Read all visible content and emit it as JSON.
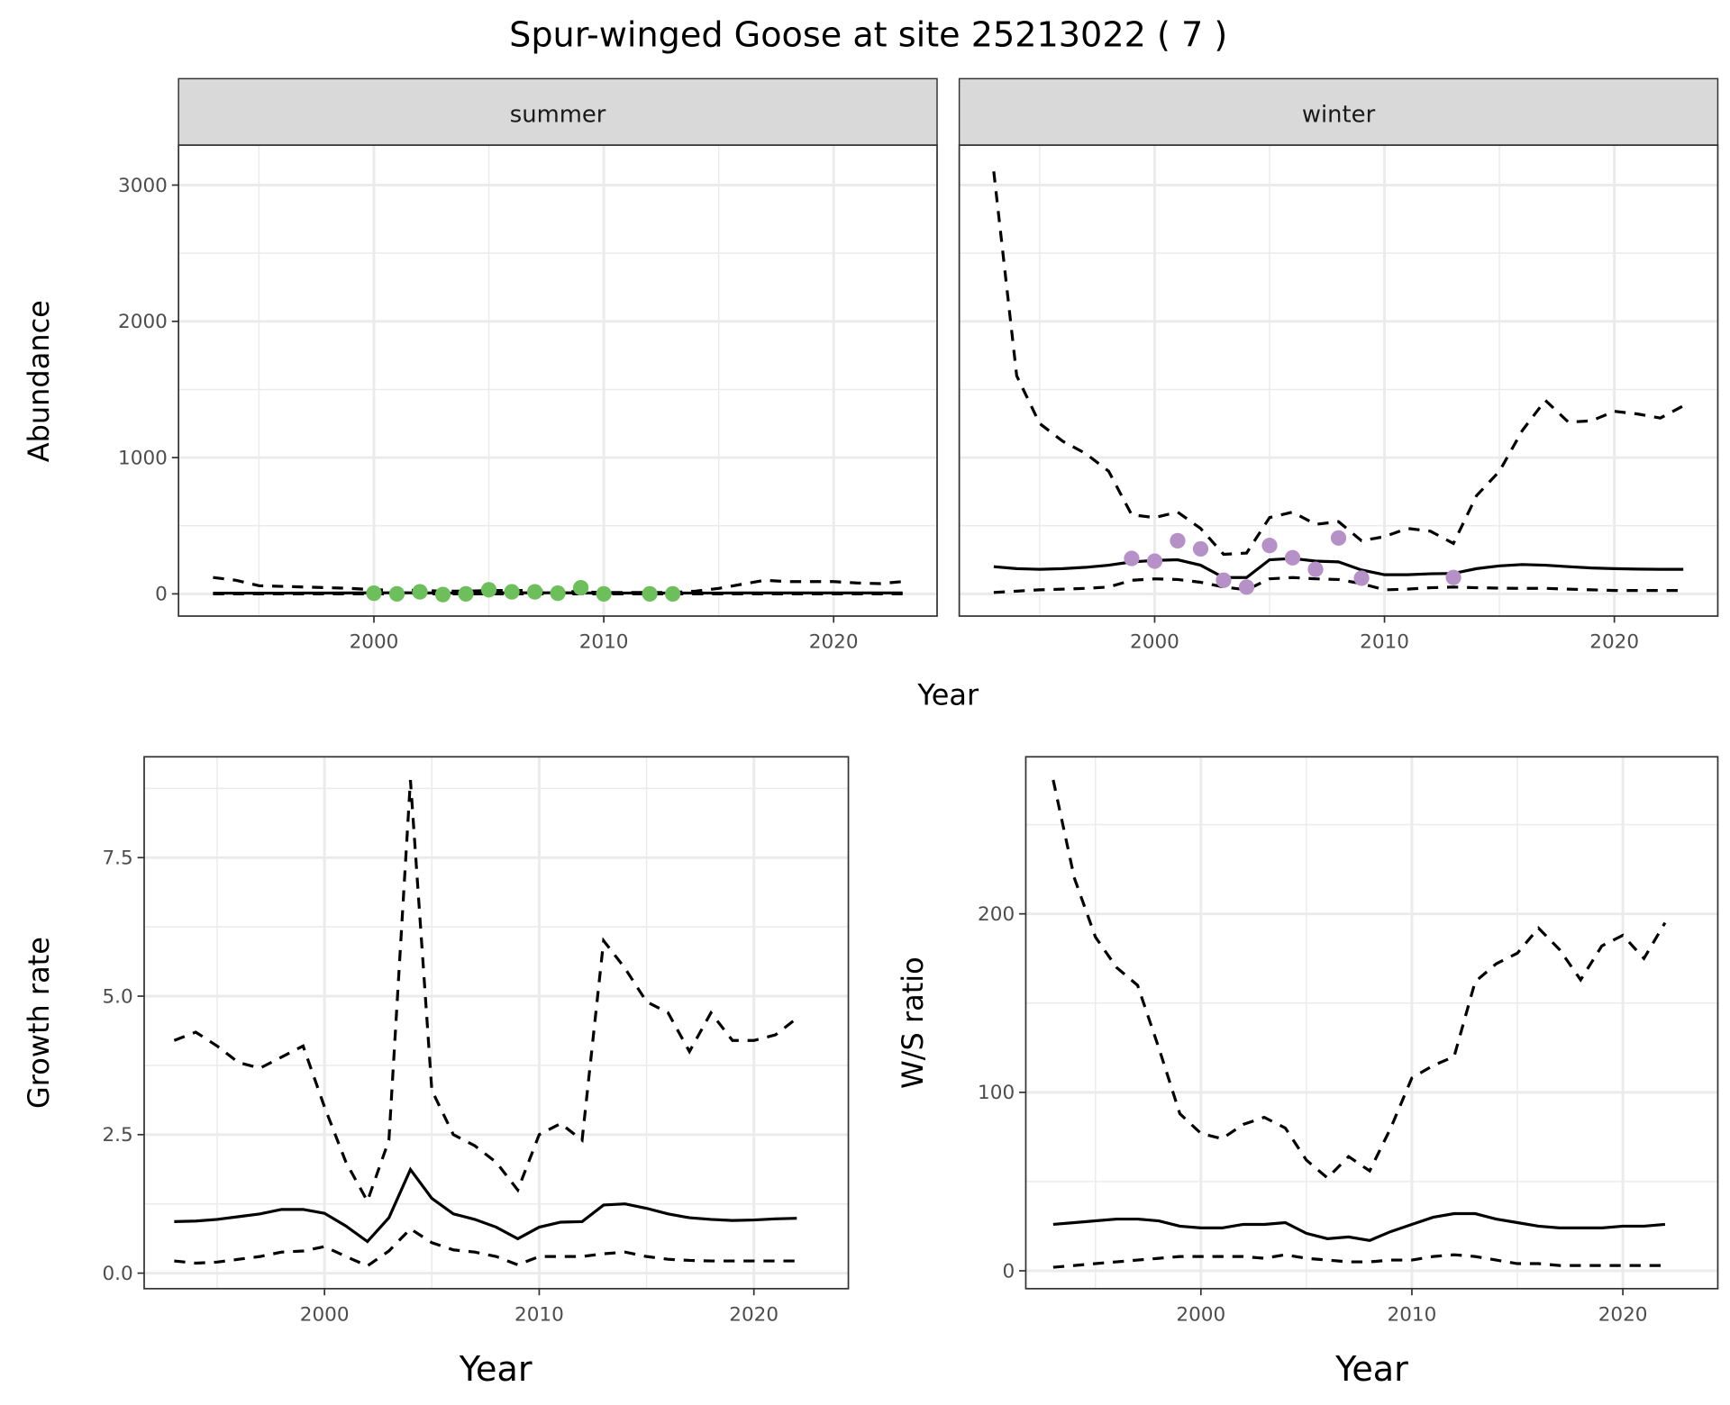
{
  "title": "Spur-winged Goose at site 25213022 ( 7 )",
  "colors": {
    "summer_points": "#6dbf5b",
    "winter_points": "#b591c7",
    "line": "#000000",
    "strip": "#d9d9d9",
    "grid": "#ebebeb"
  },
  "chart_data": [
    {
      "type": "line",
      "facet": "summer",
      "xlabel": "Year",
      "ylabel": "Abundance",
      "xlim": [
        1991.5,
        2024.5
      ],
      "ylim": [
        -163,
        3293
      ],
      "xticks": [
        2000,
        2010,
        2020
      ],
      "yticks": [
        0,
        1000,
        2000,
        3000
      ],
      "grid": true,
      "line_x": [
        1993,
        1994,
        1995,
        1996,
        1997,
        1998,
        1999,
        2000,
        2001,
        2002,
        2003,
        2004,
        2005,
        2006,
        2007,
        2008,
        2009,
        2010,
        2011,
        2012,
        2013,
        2014,
        2015,
        2016,
        2017,
        2018,
        2019,
        2020,
        2021,
        2022,
        2023
      ],
      "estimate": [
        5,
        5,
        5,
        5,
        6,
        6,
        7,
        8,
        8,
        8,
        6,
        6,
        8,
        8,
        8,
        8,
        7,
        6,
        6,
        6,
        6,
        6,
        6,
        7,
        7,
        7,
        7,
        7,
        7,
        7,
        7
      ],
      "upper": [
        120,
        100,
        60,
        55,
        50,
        45,
        40,
        30,
        28,
        25,
        20,
        20,
        25,
        25,
        25,
        20,
        15,
        10,
        10,
        10,
        10,
        20,
        40,
        70,
        100,
        90,
        90,
        90,
        80,
        75,
        90
      ],
      "lower": [
        0,
        0,
        0,
        0,
        0,
        0,
        0,
        0,
        0,
        0,
        0,
        0,
        0,
        0,
        0,
        0,
        0,
        0,
        0,
        0,
        0,
        0,
        0,
        0,
        0,
        0,
        0,
        0,
        0,
        0,
        0
      ],
      "points_x": [
        2000,
        2001,
        2002,
        2003,
        2004,
        2005,
        2006,
        2007,
        2008,
        2009,
        2010,
        2012,
        2013
      ],
      "points_y": [
        5,
        0,
        15,
        -5,
        0,
        30,
        15,
        15,
        5,
        45,
        0,
        0,
        0
      ]
    },
    {
      "type": "line",
      "facet": "winter",
      "xlabel": "Year",
      "ylabel": "Abundance",
      "xlim": [
        1991.5,
        2024.5
      ],
      "ylim": [
        -163,
        3293
      ],
      "xticks": [
        2000,
        2010,
        2020
      ],
      "yticks": [
        0,
        1000,
        2000,
        3000
      ],
      "grid": true,
      "line_x": [
        1993,
        1994,
        1995,
        1996,
        1997,
        1998,
        1999,
        2000,
        2001,
        2002,
        2003,
        2004,
        2005,
        2006,
        2007,
        2008,
        2009,
        2010,
        2011,
        2012,
        2013,
        2014,
        2015,
        2016,
        2017,
        2018,
        2019,
        2020,
        2021,
        2022,
        2023
      ],
      "estimate": [
        200,
        185,
        180,
        185,
        195,
        210,
        235,
        245,
        250,
        210,
        120,
        120,
        250,
        260,
        240,
        235,
        175,
        140,
        140,
        148,
        150,
        185,
        205,
        215,
        210,
        200,
        190,
        185,
        182,
        180,
        180
      ],
      "upper": [
        3100,
        1600,
        1250,
        1120,
        1030,
        900,
        580,
        560,
        600,
        480,
        290,
        300,
        560,
        600,
        510,
        530,
        390,
        420,
        480,
        460,
        370,
        720,
        900,
        1200,
        1420,
        1260,
        1270,
        1340,
        1320,
        1290,
        1380
      ],
      "lower": [
        10,
        20,
        30,
        35,
        40,
        50,
        100,
        110,
        105,
        85,
        50,
        30,
        110,
        120,
        110,
        105,
        75,
        30,
        35,
        45,
        50,
        45,
        42,
        40,
        40,
        35,
        30,
        25,
        25,
        25,
        25
      ],
      "points_x": [
        1999,
        2000,
        2001,
        2002,
        2003,
        2004,
        2005,
        2006,
        2007,
        2008,
        2009,
        2013
      ],
      "points_y": [
        260,
        240,
        390,
        330,
        100,
        50,
        355,
        265,
        180,
        410,
        115,
        120
      ]
    },
    {
      "type": "line",
      "xlabel": "Year",
      "ylabel": "Growth rate",
      "xlim": [
        1991.6,
        2024.4
      ],
      "ylim": [
        -0.28,
        9.32
      ],
      "xticks": [
        2000,
        2010,
        2020
      ],
      "yticks": [
        0.0,
        2.5,
        5.0,
        7.5
      ],
      "ytick_labels": [
        "0.0",
        "2.5",
        "5.0",
        "7.5"
      ],
      "grid": true,
      "line_x": [
        1993,
        1994,
        1995,
        1996,
        1997,
        1998,
        1999,
        2000,
        2001,
        2002,
        2003,
        2004,
        2005,
        2006,
        2007,
        2008,
        2009,
        2010,
        2011,
        2012,
        2013,
        2014,
        2015,
        2016,
        2017,
        2018,
        2019,
        2020,
        2021,
        2022
      ],
      "estimate": [
        0.93,
        0.94,
        0.97,
        1.02,
        1.07,
        1.15,
        1.15,
        1.08,
        0.85,
        0.57,
        1.0,
        1.87,
        1.35,
        1.07,
        0.97,
        0.83,
        0.62,
        0.83,
        0.92,
        0.93,
        1.23,
        1.25,
        1.17,
        1.07,
        1.0,
        0.97,
        0.95,
        0.96,
        0.98,
        0.99
      ],
      "upper": [
        4.2,
        4.35,
        4.1,
        3.8,
        3.7,
        3.9,
        4.1,
        3.0,
        2.0,
        1.3,
        2.4,
        8.9,
        3.3,
        2.5,
        2.3,
        2.0,
        1.5,
        2.5,
        2.7,
        2.4,
        6.0,
        5.5,
        4.9,
        4.7,
        4.0,
        4.7,
        4.2,
        4.2,
        4.3,
        4.6
      ],
      "lower": [
        0.22,
        0.18,
        0.2,
        0.25,
        0.3,
        0.38,
        0.4,
        0.48,
        0.3,
        0.13,
        0.4,
        0.8,
        0.55,
        0.42,
        0.38,
        0.3,
        0.15,
        0.3,
        0.3,
        0.3,
        0.35,
        0.38,
        0.3,
        0.25,
        0.23,
        0.22,
        0.22,
        0.22,
        0.22,
        0.22
      ]
    },
    {
      "type": "line",
      "xlabel": "Year",
      "ylabel": "W/S ratio",
      "xlim": [
        1991.7,
        2024.5
      ],
      "ylim": [
        -10,
        288
      ],
      "xticks": [
        2000,
        2010,
        2020
      ],
      "yticks": [
        0,
        100,
        200
      ],
      "grid": true,
      "line_x": [
        1993,
        1994,
        1995,
        1996,
        1997,
        1998,
        1999,
        2000,
        2001,
        2002,
        2003,
        2004,
        2005,
        2006,
        2007,
        2008,
        2009,
        2010,
        2011,
        2012,
        2013,
        2014,
        2015,
        2016,
        2017,
        2018,
        2019,
        2020,
        2021,
        2022
      ],
      "estimate": [
        26,
        27,
        28,
        29,
        29,
        28,
        25,
        24,
        24,
        26,
        26,
        27,
        21,
        18,
        19,
        17,
        22,
        26,
        30,
        32,
        32,
        29,
        27,
        25,
        24,
        24,
        24,
        25,
        25,
        26
      ],
      "upper": [
        275,
        220,
        187,
        170,
        160,
        125,
        88,
        77,
        74,
        82,
        86,
        80,
        62,
        52,
        64,
        56,
        80,
        108,
        115,
        120,
        162,
        172,
        178,
        192,
        180,
        163,
        182,
        188,
        175,
        195
      ],
      "lower": [
        2,
        3,
        4,
        5,
        6,
        7,
        8,
        8,
        8,
        8,
        7,
        9,
        7,
        6,
        5,
        5,
        6,
        6,
        8,
        9,
        8,
        6,
        4,
        4,
        3,
        3,
        3,
        3,
        3,
        3
      ]
    }
  ]
}
